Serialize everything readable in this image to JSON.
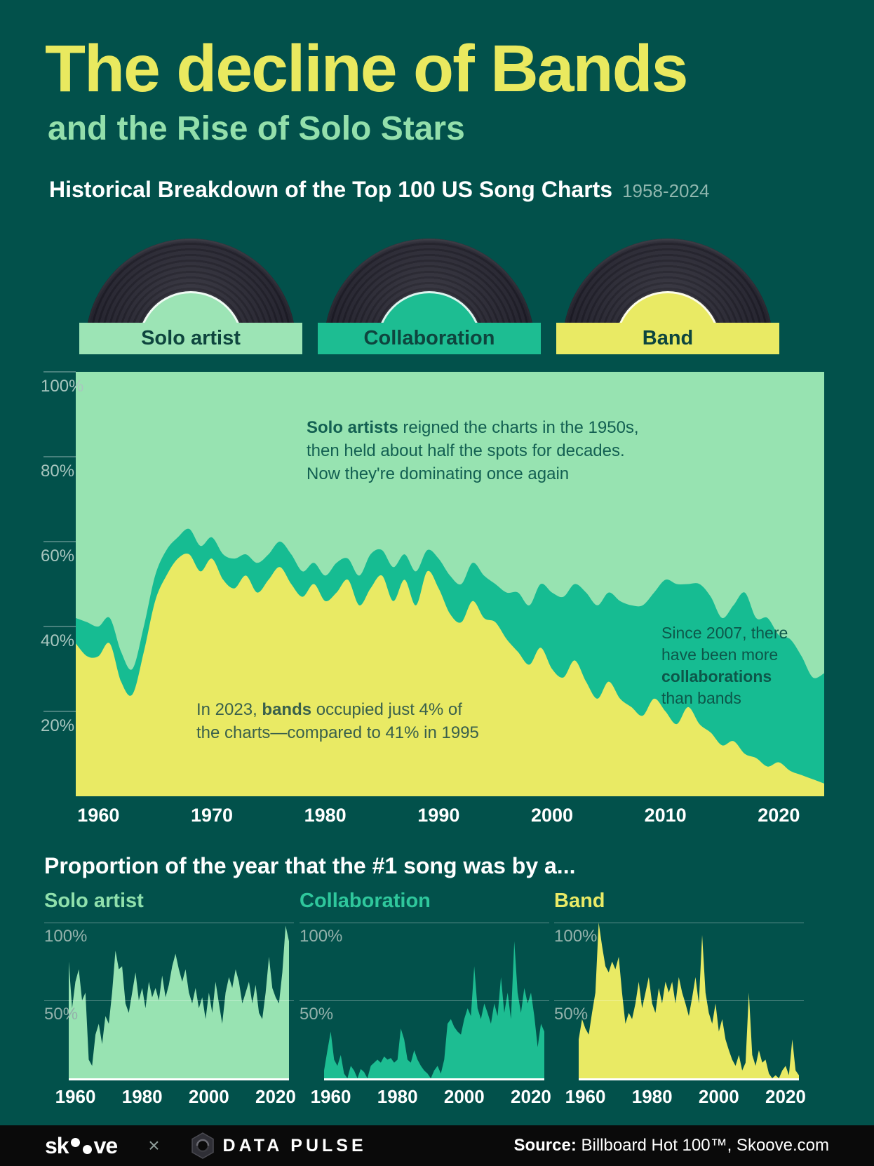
{
  "header": {
    "title": "The decline of Bands",
    "subtitle": "and the Rise of Solo Stars",
    "section_heading": "Historical Breakdown of the Top 100 US Song Charts",
    "period": "1958-2024"
  },
  "legend": {
    "items": [
      {
        "label": "Solo artist",
        "color": "#9ce4b5"
      },
      {
        "label": "Collaboration",
        "color": "#1dbd92"
      },
      {
        "label": "Band",
        "color": "#e9ea64"
      }
    ]
  },
  "chart_data": {
    "main": {
      "type": "area",
      "stacked": true,
      "title": "Historical Breakdown of the Top 100 US Song Charts",
      "period": "1958-2024",
      "x_start": 1958,
      "x_end": 2024,
      "x_ticks": [
        1960,
        1970,
        1980,
        1990,
        2000,
        2010,
        2020
      ],
      "y_ticks": [
        100,
        80,
        60,
        40,
        20
      ],
      "y_tick_labels": [
        "100%",
        "80%",
        "60%",
        "40%",
        "20%"
      ],
      "ylim": [
        0,
        100
      ],
      "legend_position": "top",
      "grid": false,
      "series_order_bottom_to_top": [
        "Band",
        "Collaboration",
        "Solo artist"
      ],
      "solo_is_remainder_to_100": true,
      "colors": {
        "band": "#e9ea64",
        "collaboration": "#16bc92",
        "solo": "#97e3b1"
      },
      "series": {
        "band": [
          36,
          33,
          33,
          36,
          27,
          24,
          34,
          46,
          52,
          56,
          57,
          53,
          56,
          51,
          49,
          52,
          48,
          51,
          54,
          50,
          47,
          50,
          46,
          48,
          51,
          45,
          49,
          52,
          46,
          51,
          45,
          53,
          49,
          43,
          41,
          46,
          42,
          41,
          37,
          34,
          31,
          35,
          30,
          28,
          32,
          27,
          23,
          27,
          23,
          21,
          19,
          23,
          20,
          17,
          21,
          17,
          15,
          12,
          13,
          10,
          9,
          7,
          8,
          6,
          5,
          4,
          3
        ],
        "collaboration": [
          6,
          8,
          7,
          6,
          7,
          6,
          6,
          6,
          6,
          5,
          6,
          6,
          5,
          6,
          7,
          5,
          7,
          6,
          6,
          7,
          6,
          5,
          6,
          7,
          5,
          7,
          8,
          6,
          8,
          6,
          8,
          5,
          7,
          9,
          9,
          9,
          10,
          9,
          11,
          14,
          14,
          15,
          18,
          19,
          18,
          21,
          22,
          21,
          23,
          24,
          26,
          25,
          31,
          33,
          29,
          33,
          32,
          30,
          32,
          38,
          33,
          35,
          30,
          31,
          28,
          24,
          26
        ]
      },
      "annotations": [
        {
          "id": "solo",
          "text": "**Solo artists** reigned the charts in the 1950s,\nthen held about half the spots for decades.\nNow they're dominating once again"
        },
        {
          "id": "band",
          "text": "In 2023, **bands** occupied just 4% of\nthe charts—compared to 41% in 1995"
        },
        {
          "id": "collab",
          "text": "Since 2007, there\nhave been more\n**collaborations**\nthan bands"
        }
      ]
    },
    "small_multiples": {
      "type": "area",
      "title": "Proportion of the year that the #1 song was by a...",
      "x_start": 1958,
      "x_end": 2024,
      "x_ticks": [
        1960,
        1980,
        2000,
        2020
      ],
      "y_ticks": [
        100,
        50
      ],
      "y_tick_labels": [
        "100%",
        "50%"
      ],
      "ylim": [
        0,
        100
      ],
      "grid": true,
      "charts": [
        {
          "label": "Solo artist",
          "color": "#98e3b2",
          "values": [
            75,
            45,
            62,
            70,
            50,
            55,
            12,
            8,
            28,
            35,
            22,
            40,
            35,
            55,
            82,
            70,
            72,
            48,
            42,
            55,
            68,
            50,
            58,
            45,
            62,
            52,
            58,
            50,
            66,
            52,
            60,
            72,
            80,
            70,
            62,
            70,
            55,
            48,
            58,
            45,
            52,
            38,
            55,
            42,
            62,
            48,
            35,
            55,
            65,
            58,
            70,
            62,
            48,
            55,
            62,
            48,
            60,
            42,
            38,
            55,
            78,
            58,
            52,
            48,
            68,
            98,
            88
          ]
        },
        {
          "label": "Collaboration",
          "color": "#1dbd92",
          "values": [
            5,
            18,
            30,
            12,
            8,
            15,
            3,
            0,
            8,
            5,
            0,
            6,
            4,
            0,
            8,
            10,
            12,
            10,
            14,
            12,
            13,
            10,
            12,
            32,
            25,
            12,
            10,
            18,
            12,
            8,
            5,
            3,
            0,
            5,
            8,
            3,
            12,
            35,
            38,
            33,
            30,
            28,
            38,
            45,
            40,
            72,
            45,
            38,
            48,
            42,
            35,
            48,
            40,
            65,
            42,
            55,
            38,
            88,
            55,
            42,
            58,
            48,
            55,
            40,
            20,
            35,
            30
          ]
        },
        {
          "label": "Band",
          "color": "#e9ea64",
          "values": [
            25,
            38,
            32,
            28,
            42,
            55,
            100,
            85,
            72,
            68,
            75,
            70,
            78,
            55,
            35,
            42,
            38,
            48,
            62,
            45,
            55,
            65,
            48,
            42,
            58,
            48,
            62,
            55,
            62,
            48,
            65,
            55,
            48,
            40,
            52,
            65,
            48,
            92,
            55,
            42,
            35,
            48,
            30,
            38,
            25,
            18,
            12,
            8,
            15,
            5,
            10,
            55,
            15,
            8,
            18,
            10,
            12,
            3,
            0,
            2,
            0,
            5,
            8,
            2,
            25,
            5,
            2
          ]
        }
      ]
    }
  },
  "bottom": {
    "heading": "Proportion of the year that the #1 song was by a..."
  },
  "footer": {
    "skoove_prefix": "sk",
    "skoove_suffix": "ve",
    "separator": "×",
    "datapulse": "DATA PULSE",
    "source_label": "Source:",
    "source_text": " Billboard Hot 100™, Skoove.com"
  }
}
